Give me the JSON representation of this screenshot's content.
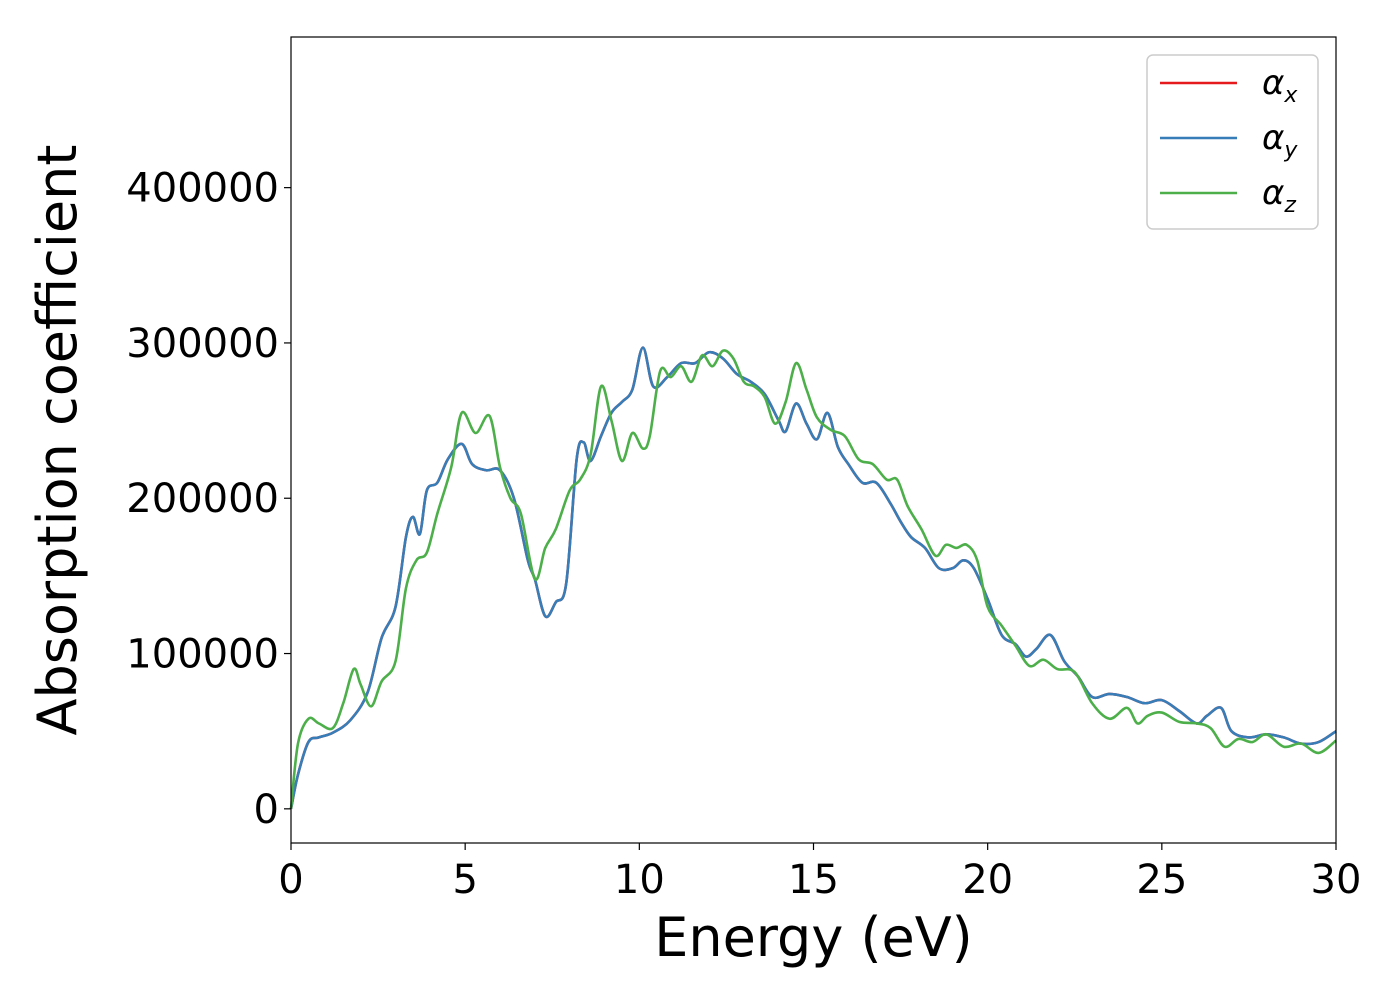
{
  "chart_data": {
    "type": "line",
    "title": "",
    "xlabel": "Energy (eV)",
    "ylabel": "Absorption coefficient",
    "xlim": [
      0,
      30
    ],
    "ylim": [
      -22000,
      497000
    ],
    "xticks": [
      0,
      5,
      10,
      15,
      20,
      25,
      30
    ],
    "xtick_labels": [
      "0",
      "5",
      "10",
      "15",
      "20",
      "25",
      "30"
    ],
    "yticks": [
      0,
      100000,
      200000,
      300000,
      400000
    ],
    "ytick_labels": [
      "0",
      "100000",
      "200000",
      "300000",
      "400000"
    ],
    "grid": false,
    "legend_position": "top-right",
    "series": [
      {
        "name": "α_x",
        "legend_base": "α",
        "legend_sub": "x",
        "color": "#e41a1c",
        "x": [
          0,
          0.2,
          0.5,
          0.8,
          1.2,
          1.7,
          2.2,
          2.6,
          3.0,
          3.3,
          3.5,
          3.7,
          3.9,
          4.2,
          4.5,
          4.9,
          5.2,
          5.6,
          6.0,
          6.4,
          6.8,
          7.0,
          7.3,
          7.6,
          7.9,
          8.2,
          8.4,
          8.6,
          8.9,
          9.2,
          9.5,
          9.8,
          10.1,
          10.4,
          10.8,
          11.2,
          11.6,
          12.0,
          12.4,
          12.8,
          13.2,
          13.6,
          14.0,
          14.2,
          14.5,
          14.8,
          15.1,
          15.4,
          15.7,
          16.0,
          16.4,
          16.8,
          17.2,
          17.5,
          17.8,
          18.2,
          18.6,
          19.0,
          19.3,
          19.6,
          20.0,
          20.4,
          20.8,
          21.1,
          21.4,
          21.8,
          22.2,
          22.6,
          23.0,
          23.5,
          24.0,
          24.5,
          25.0,
          25.5,
          26.0,
          26.3,
          26.7,
          27.0,
          27.5,
          28.0,
          28.5,
          29.0,
          29.5,
          30.0
        ],
        "values": [
          0,
          22000,
          43000,
          46000,
          49000,
          57000,
          75000,
          110000,
          130000,
          175000,
          188000,
          177000,
          205000,
          210000,
          225000,
          235000,
          222000,
          218000,
          218000,
          200000,
          160000,
          148000,
          124000,
          133000,
          145000,
          225000,
          236000,
          224000,
          240000,
          255000,
          262000,
          270000,
          297000,
          272000,
          278000,
          287000,
          287000,
          294000,
          290000,
          280000,
          275000,
          267000,
          250000,
          243000,
          261000,
          248000,
          238000,
          255000,
          233000,
          222000,
          210000,
          210000,
          197000,
          185000,
          175000,
          168000,
          155000,
          155000,
          160000,
          155000,
          135000,
          112000,
          106000,
          98000,
          103000,
          112000,
          95000,
          85000,
          72000,
          74000,
          72000,
          68000,
          70000,
          63000,
          55000,
          60000,
          65000,
          50000,
          46000,
          48000,
          46000,
          42000,
          43000,
          50000
        ]
      },
      {
        "name": "α_y",
        "legend_base": "α",
        "legend_sub": "y",
        "color": "#377eb8",
        "x": [
          0,
          0.2,
          0.5,
          0.8,
          1.2,
          1.7,
          2.2,
          2.6,
          3.0,
          3.3,
          3.5,
          3.7,
          3.9,
          4.2,
          4.5,
          4.9,
          5.2,
          5.6,
          6.0,
          6.4,
          6.8,
          7.0,
          7.3,
          7.6,
          7.9,
          8.2,
          8.4,
          8.6,
          8.9,
          9.2,
          9.5,
          9.8,
          10.1,
          10.4,
          10.8,
          11.2,
          11.6,
          12.0,
          12.4,
          12.8,
          13.2,
          13.6,
          14.0,
          14.2,
          14.5,
          14.8,
          15.1,
          15.4,
          15.7,
          16.0,
          16.4,
          16.8,
          17.2,
          17.5,
          17.8,
          18.2,
          18.6,
          19.0,
          19.3,
          19.6,
          20.0,
          20.4,
          20.8,
          21.1,
          21.4,
          21.8,
          22.2,
          22.6,
          23.0,
          23.5,
          24.0,
          24.5,
          25.0,
          25.5,
          26.0,
          26.3,
          26.7,
          27.0,
          27.5,
          28.0,
          28.5,
          29.0,
          29.5,
          30.0
        ],
        "values": [
          0,
          22000,
          43000,
          46000,
          49000,
          57000,
          75000,
          110000,
          130000,
          175000,
          188000,
          177000,
          205000,
          210000,
          225000,
          235000,
          222000,
          218000,
          218000,
          200000,
          160000,
          148000,
          124000,
          133000,
          145000,
          225000,
          236000,
          224000,
          240000,
          255000,
          262000,
          270000,
          297000,
          272000,
          278000,
          287000,
          287000,
          294000,
          290000,
          280000,
          275000,
          267000,
          250000,
          243000,
          261000,
          248000,
          238000,
          255000,
          233000,
          222000,
          210000,
          210000,
          197000,
          185000,
          175000,
          168000,
          155000,
          155000,
          160000,
          155000,
          135000,
          112000,
          106000,
          98000,
          103000,
          112000,
          95000,
          85000,
          72000,
          74000,
          72000,
          68000,
          70000,
          63000,
          55000,
          60000,
          65000,
          50000,
          46000,
          48000,
          46000,
          42000,
          43000,
          50000
        ]
      },
      {
        "name": "α_z",
        "legend_base": "α",
        "legend_sub": "z",
        "color": "#4daf4a",
        "x": [
          0,
          0.2,
          0.5,
          0.8,
          1.2,
          1.5,
          1.8,
          2.0,
          2.3,
          2.6,
          3.0,
          3.3,
          3.6,
          3.9,
          4.2,
          4.6,
          4.9,
          5.3,
          5.7,
          6.0,
          6.3,
          6.6,
          7.0,
          7.3,
          7.6,
          8.0,
          8.3,
          8.6,
          8.9,
          9.2,
          9.5,
          9.8,
          10.1,
          10.3,
          10.6,
          10.9,
          11.2,
          11.5,
          11.8,
          12.1,
          12.4,
          12.7,
          13.0,
          13.3,
          13.6,
          13.9,
          14.2,
          14.5,
          14.8,
          15.1,
          15.5,
          15.9,
          16.3,
          16.7,
          17.1,
          17.4,
          17.7,
          18.1,
          18.5,
          18.8,
          19.1,
          19.4,
          19.7,
          20.0,
          20.4,
          20.8,
          21.2,
          21.6,
          22.0,
          22.5,
          23.0,
          23.5,
          24.0,
          24.3,
          24.6,
          25.0,
          25.5,
          26.0,
          26.4,
          26.8,
          27.2,
          27.6,
          28.0,
          28.5,
          29.0,
          29.5,
          30.0
        ],
        "values": [
          0,
          42000,
          58000,
          55000,
          52000,
          68000,
          90000,
          80000,
          66000,
          82000,
          95000,
          142000,
          160000,
          165000,
          190000,
          220000,
          255000,
          242000,
          253000,
          220000,
          200000,
          190000,
          148000,
          168000,
          180000,
          205000,
          212000,
          228000,
          272000,
          250000,
          224000,
          242000,
          232000,
          240000,
          282000,
          278000,
          285000,
          275000,
          292000,
          285000,
          295000,
          290000,
          275000,
          272000,
          265000,
          248000,
          262000,
          287000,
          270000,
          252000,
          244000,
          240000,
          225000,
          222000,
          212000,
          212000,
          195000,
          180000,
          163000,
          170000,
          168000,
          170000,
          160000,
          130000,
          118000,
          105000,
          92000,
          96000,
          90000,
          88000,
          68000,
          58000,
          65000,
          55000,
          60000,
          62000,
          56000,
          55000,
          52000,
          40000,
          45000,
          43000,
          48000,
          40000,
          42000,
          36000,
          44000
        ]
      }
    ]
  }
}
